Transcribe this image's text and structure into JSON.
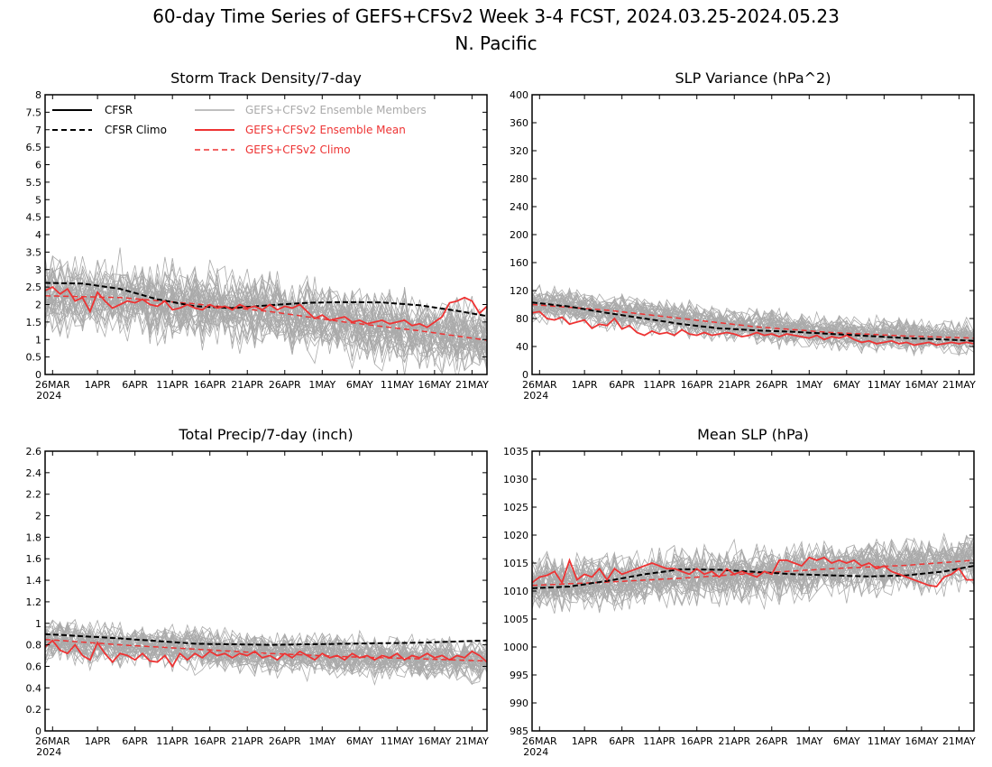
{
  "figure": {
    "title_line1": "60-day Time Series of GEFS+CFSv2 Week 3-4 FCST, 2024.03.25-2024.05.23",
    "title_line2": "N. Pacific"
  },
  "legend": {
    "cfsr": "CFSR",
    "cfsr_climo": "CFSR Climo",
    "members": "GEFS+CFSv2 Ensemble Members",
    "mean": "GEFS+CFSv2 Ensemble Mean",
    "model_climo": "GEFS+CFSv2 Climo"
  },
  "colors": {
    "cfsr": "#000000",
    "members": "#aaaaaa",
    "mean": "#ee3333",
    "model_climo": "#ee3333"
  },
  "chart_data": [
    {
      "id": "storm",
      "type": "line",
      "title": "Storm Track Density/7-day",
      "xlim": [
        0,
        59
      ],
      "ylim": [
        0,
        8
      ],
      "yticks": [
        "0",
        "0.5",
        "1",
        "1.5",
        "2",
        "2.5",
        "3",
        "3.5",
        "4",
        "4.5",
        "5",
        "5.5",
        "6",
        "6.5",
        "7",
        "7.5",
        "8"
      ],
      "xticks": [
        {
          "x": 1,
          "label": "26MAR",
          "sub": "2024"
        },
        {
          "x": 7,
          "label": "1APR"
        },
        {
          "x": 12,
          "label": "6APR"
        },
        {
          "x": 17,
          "label": "11APR"
        },
        {
          "x": 22,
          "label": "16APR"
        },
        {
          "x": 27,
          "label": "21APR"
        },
        {
          "x": 32,
          "label": "26APR"
        },
        {
          "x": 37,
          "label": "1MAY"
        },
        {
          "x": 42,
          "label": "6MAY"
        },
        {
          "x": 47,
          "label": "11MAY"
        },
        {
          "x": 52,
          "label": "16MAY"
        },
        {
          "x": 57,
          "label": "21MAY"
        }
      ],
      "cfsr_climo": [
        [
          0,
          2.62
        ],
        [
          5,
          2.6
        ],
        [
          10,
          2.45
        ],
        [
          15,
          2.15
        ],
        [
          20,
          1.95
        ],
        [
          25,
          1.9
        ],
        [
          30,
          1.98
        ],
        [
          35,
          2.05
        ],
        [
          40,
          2.07
        ],
        [
          45,
          2.06
        ],
        [
          50,
          1.98
        ],
        [
          55,
          1.82
        ],
        [
          59,
          1.67
        ]
      ],
      "model_climo": [
        [
          0,
          2.25
        ],
        [
          10,
          2.2
        ],
        [
          20,
          2.02
        ],
        [
          30,
          1.8
        ],
        [
          40,
          1.5
        ],
        [
          50,
          1.25
        ],
        [
          59,
          0.98
        ]
      ],
      "ensemble_mean": [
        2.4,
        2.5,
        2.3,
        2.45,
        2.1,
        2.2,
        1.8,
        2.35,
        2.1,
        1.9,
        2.0,
        2.1,
        2.05,
        2.15,
        2.0,
        1.95,
        2.1,
        1.85,
        1.9,
        2.0,
        1.9,
        1.85,
        2.0,
        1.9,
        1.95,
        1.85,
        2.0,
        1.9,
        1.95,
        1.85,
        2.0,
        1.85,
        1.95,
        1.9,
        2.0,
        1.8,
        1.6,
        1.7,
        1.55,
        1.6,
        1.65,
        1.5,
        1.55,
        1.45,
        1.5,
        1.55,
        1.45,
        1.5,
        1.55,
        1.4,
        1.45,
        1.35,
        1.5,
        1.65,
        2.05,
        2.1,
        2.2,
        2.1,
        1.75,
        1.95
      ],
      "member_count": 40,
      "member_spread": 0.7
    },
    {
      "id": "slpvar",
      "type": "line",
      "title": "SLP Variance (hPa^2)",
      "xlim": [
        0,
        59
      ],
      "ylim": [
        0,
        400
      ],
      "yticks": [
        "0",
        "40",
        "80",
        "120",
        "160",
        "200",
        "240",
        "280",
        "320",
        "360",
        "400"
      ],
      "xticks": [
        {
          "x": 1,
          "label": "26MAR",
          "sub": "2024"
        },
        {
          "x": 7,
          "label": "1APR"
        },
        {
          "x": 12,
          "label": "6APR"
        },
        {
          "x": 17,
          "label": "11APR"
        },
        {
          "x": 22,
          "label": "16APR"
        },
        {
          "x": 27,
          "label": "21APR"
        },
        {
          "x": 32,
          "label": "26APR"
        },
        {
          "x": 37,
          "label": "1MAY"
        },
        {
          "x": 42,
          "label": "6MAY"
        },
        {
          "x": 47,
          "label": "11MAY"
        },
        {
          "x": 52,
          "label": "16MAY"
        },
        {
          "x": 57,
          "label": "21MAY"
        }
      ],
      "cfsr_climo": [
        [
          0,
          103
        ],
        [
          5,
          97
        ],
        [
          10,
          88
        ],
        [
          15,
          80
        ],
        [
          20,
          72
        ],
        [
          25,
          66
        ],
        [
          30,
          63
        ],
        [
          35,
          61
        ],
        [
          40,
          58
        ],
        [
          45,
          55
        ],
        [
          50,
          52
        ],
        [
          55,
          50
        ],
        [
          59,
          48
        ]
      ],
      "model_climo": [
        [
          0,
          100
        ],
        [
          10,
          92
        ],
        [
          20,
          80
        ],
        [
          30,
          68
        ],
        [
          40,
          60
        ],
        [
          50,
          55
        ],
        [
          59,
          52
        ]
      ],
      "ensemble_mean": [
        88,
        90,
        80,
        78,
        82,
        72,
        75,
        78,
        66,
        72,
        70,
        80,
        65,
        70,
        60,
        56,
        62,
        58,
        60,
        56,
        64,
        58,
        56,
        60,
        56,
        58,
        60,
        58,
        54,
        56,
        60,
        56,
        58,
        54,
        58,
        56,
        54,
        52,
        56,
        50,
        54,
        52,
        56,
        50,
        46,
        48,
        44,
        46,
        48,
        44,
        46,
        42,
        44,
        46,
        42,
        44,
        46,
        44,
        46,
        44
      ],
      "member_count": 40,
      "member_spread": 16
    },
    {
      "id": "precip",
      "type": "line",
      "title": "Total Precip/7-day (inch)",
      "xlim": [
        0,
        59
      ],
      "ylim": [
        0,
        2.6
      ],
      "yticks": [
        "0",
        "0.2",
        "0.4",
        "0.6",
        "0.8",
        "1",
        "1.2",
        "1.4",
        "1.6",
        "1.8",
        "2",
        "2.2",
        "2.4",
        "2.6"
      ],
      "xticks": [
        {
          "x": 1,
          "label": "26MAR",
          "sub": "2024"
        },
        {
          "x": 7,
          "label": "1APR"
        },
        {
          "x": 12,
          "label": "6APR"
        },
        {
          "x": 17,
          "label": "11APR"
        },
        {
          "x": 22,
          "label": "16APR"
        },
        {
          "x": 27,
          "label": "21APR"
        },
        {
          "x": 32,
          "label": "26APR"
        },
        {
          "x": 37,
          "label": "1MAY"
        },
        {
          "x": 42,
          "label": "6MAY"
        },
        {
          "x": 47,
          "label": "11MAY"
        },
        {
          "x": 52,
          "label": "16MAY"
        },
        {
          "x": 57,
          "label": "21MAY"
        }
      ],
      "cfsr_climo": [
        [
          0,
          0.9
        ],
        [
          10,
          0.86
        ],
        [
          20,
          0.81
        ],
        [
          30,
          0.8
        ],
        [
          40,
          0.81
        ],
        [
          50,
          0.82
        ],
        [
          59,
          0.84
        ]
      ],
      "model_climo": [
        [
          0,
          0.85
        ],
        [
          10,
          0.8
        ],
        [
          20,
          0.76
        ],
        [
          30,
          0.72
        ],
        [
          40,
          0.69
        ],
        [
          50,
          0.67
        ],
        [
          59,
          0.65
        ]
      ],
      "ensemble_mean": [
        0.78,
        0.84,
        0.75,
        0.72,
        0.8,
        0.7,
        0.66,
        0.82,
        0.72,
        0.64,
        0.72,
        0.7,
        0.66,
        0.72,
        0.65,
        0.64,
        0.7,
        0.6,
        0.72,
        0.66,
        0.72,
        0.68,
        0.74,
        0.7,
        0.72,
        0.68,
        0.72,
        0.7,
        0.74,
        0.68,
        0.7,
        0.66,
        0.72,
        0.68,
        0.74,
        0.7,
        0.66,
        0.72,
        0.68,
        0.7,
        0.66,
        0.72,
        0.68,
        0.7,
        0.66,
        0.7,
        0.68,
        0.72,
        0.66,
        0.7,
        0.68,
        0.72,
        0.68,
        0.7,
        0.66,
        0.7,
        0.68,
        0.74,
        0.7,
        0.64
      ],
      "member_count": 40,
      "member_spread": 0.13
    },
    {
      "id": "mslp",
      "type": "line",
      "title": "Mean SLP (hPa)",
      "xlim": [
        0,
        59
      ],
      "ylim": [
        985,
        1035
      ],
      "yticks": [
        "985",
        "990",
        "995",
        "1000",
        "1005",
        "1010",
        "1015",
        "1020",
        "1025",
        "1030",
        "1035"
      ],
      "xticks": [
        {
          "x": 1,
          "label": "26MAR",
          "sub": "2024"
        },
        {
          "x": 7,
          "label": "1APR"
        },
        {
          "x": 12,
          "label": "6APR"
        },
        {
          "x": 17,
          "label": "11APR"
        },
        {
          "x": 22,
          "label": "16APR"
        },
        {
          "x": 27,
          "label": "21APR"
        },
        {
          "x": 32,
          "label": "26APR"
        },
        {
          "x": 37,
          "label": "1MAY"
        },
        {
          "x": 42,
          "label": "6MAY"
        },
        {
          "x": 47,
          "label": "11MAY"
        },
        {
          "x": 52,
          "label": "16MAY"
        },
        {
          "x": 57,
          "label": "21MAY"
        }
      ],
      "cfsr_climo": [
        [
          0,
          1010.5
        ],
        [
          5,
          1010.8
        ],
        [
          10,
          1011.8
        ],
        [
          15,
          1013
        ],
        [
          20,
          1013.9
        ],
        [
          25,
          1013.8
        ],
        [
          30,
          1013.4
        ],
        [
          35,
          1013
        ],
        [
          40,
          1012.8
        ],
        [
          45,
          1012.6
        ],
        [
          50,
          1012.8
        ],
        [
          55,
          1013.5
        ],
        [
          59,
          1014.5
        ]
      ],
      "model_climo": [
        [
          0,
          1011
        ],
        [
          10,
          1011.6
        ],
        [
          20,
          1012.3
        ],
        [
          30,
          1013.2
        ],
        [
          40,
          1014
        ],
        [
          50,
          1014.6
        ],
        [
          59,
          1015.5
        ]
      ],
      "ensemble_mean": [
        1011.5,
        1012.5,
        1012.8,
        1013.5,
        1011.5,
        1015.5,
        1012,
        1013,
        1012.5,
        1014,
        1012,
        1014,
        1013,
        1013.5,
        1014,
        1014.5,
        1015,
        1014.5,
        1014,
        1014,
        1013.5,
        1013,
        1014,
        1013,
        1013.5,
        1012.5,
        1014,
        1013,
        1013.5,
        1013,
        1012.5,
        1013.5,
        1013,
        1015.5,
        1015.5,
        1015,
        1014.5,
        1016,
        1015.5,
        1016,
        1015,
        1015.5,
        1015,
        1015.5,
        1014.5,
        1015,
        1014,
        1014.5,
        1013.5,
        1013,
        1012.5,
        1012,
        1011.5,
        1011,
        1010.8,
        1012.5,
        1013,
        1014,
        1012,
        1012
      ],
      "member_count": 40,
      "member_spread": 3.2
    }
  ]
}
